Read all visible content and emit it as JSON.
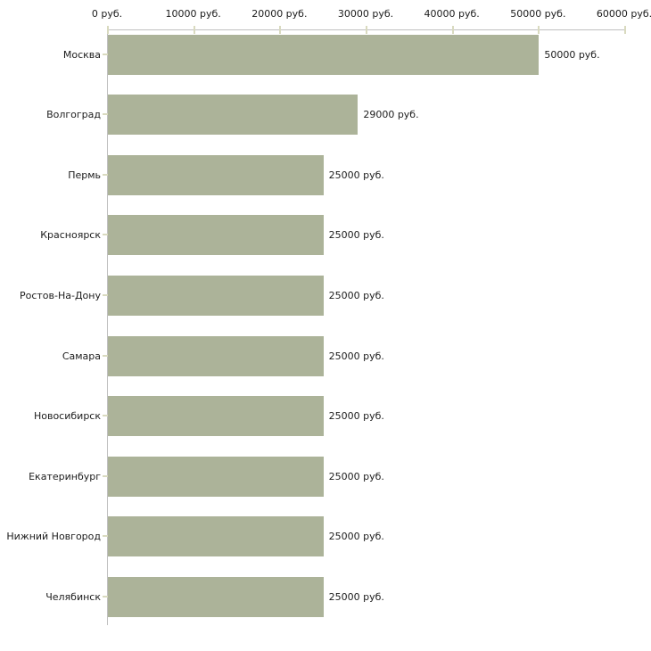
{
  "chart_data": {
    "type": "bar",
    "orientation": "horizontal",
    "title": "",
    "xlabel": "",
    "ylabel": "",
    "xlim": [
      0,
      60000
    ],
    "x_tick_labels": [
      "0 руб.",
      "10000 руб.",
      "20000 руб.",
      "30000 руб.",
      "40000 руб.",
      "50000 руб.",
      "60000 руб."
    ],
    "categories": [
      "Москва",
      "Волгоград",
      "Пермь",
      "Красноярск",
      "Ростов-На-Дону",
      "Самара",
      "Новосибирск",
      "Екатеринбург",
      "Нижний Новгород",
      "Челябинск"
    ],
    "values": [
      50000,
      29000,
      25000,
      25000,
      25000,
      25000,
      25000,
      25000,
      25000,
      25000
    ],
    "value_labels": [
      "50000 руб.",
      "29000 руб.",
      "25000 руб.",
      "25000 руб.",
      "25000 руб.",
      "25000 руб.",
      "25000 руб.",
      "25000 руб.",
      "25000 руб.",
      "25000 руб."
    ],
    "unit": "руб.",
    "legend": "none",
    "grid": "off",
    "colors": {
      "bar": "#acb399",
      "axis_line": "#c0c0c0",
      "tick_mark": "#d9dabf",
      "text": "#1c1c1c",
      "background": "#ffffff"
    }
  }
}
